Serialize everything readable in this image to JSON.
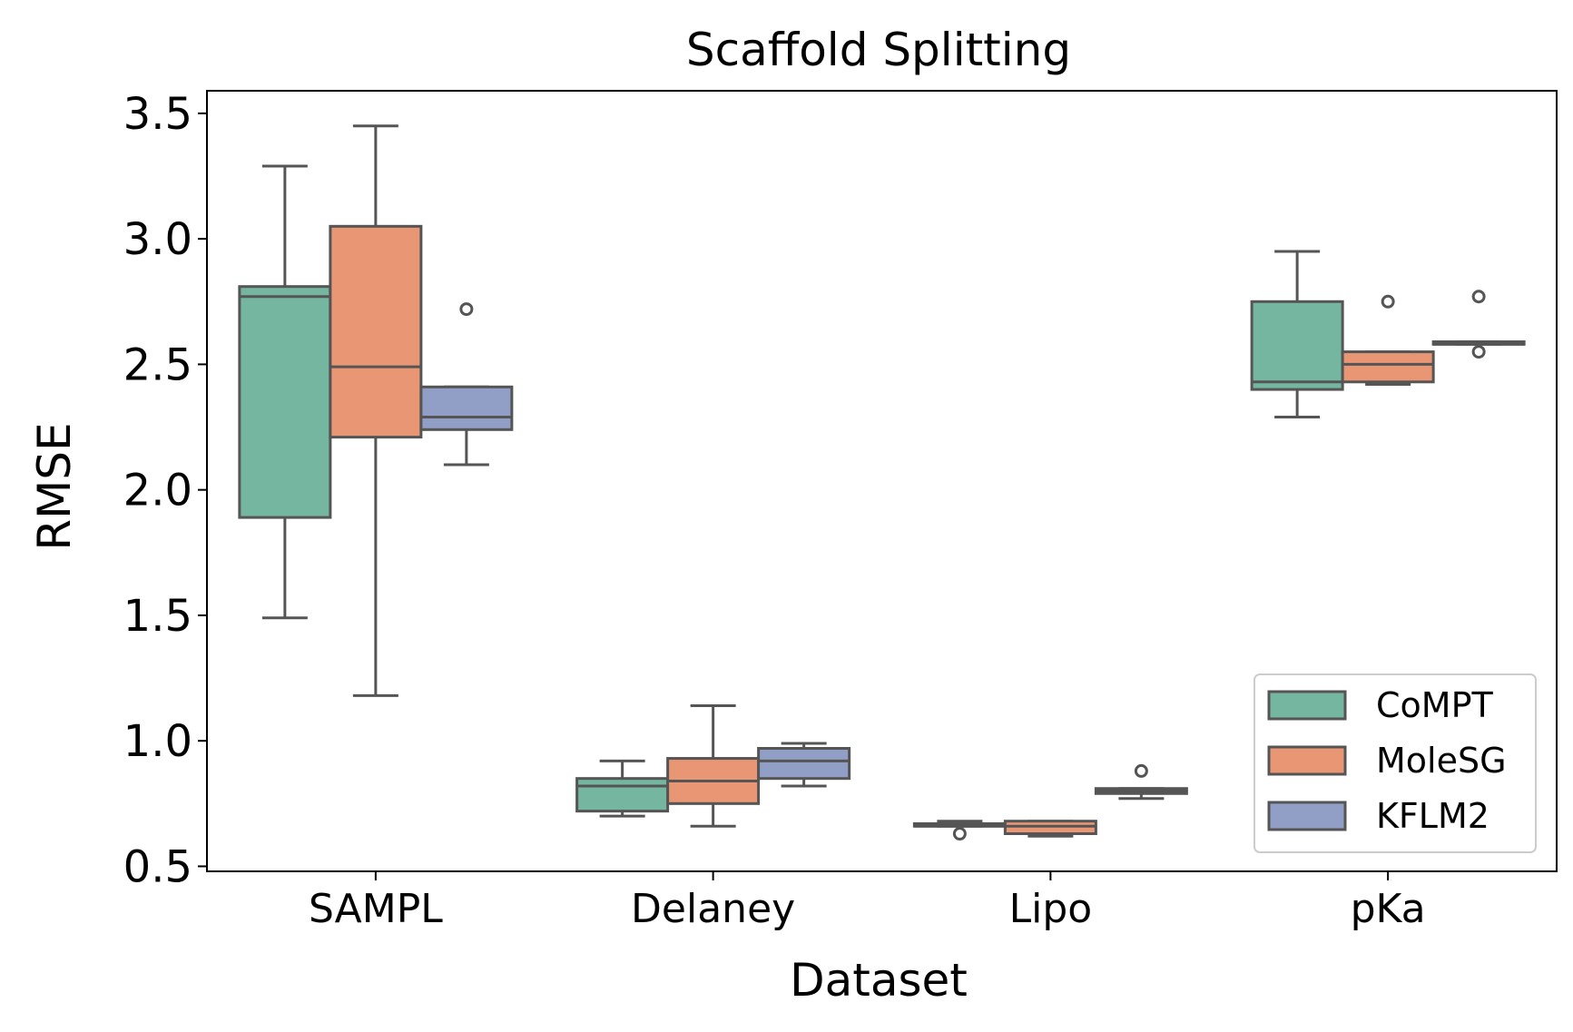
{
  "chart_data": {
    "type": "box",
    "title": "Scaffold Splitting",
    "xlabel": "Dataset",
    "ylabel": "RMSE",
    "categories": [
      "SAMPL",
      "Delaney",
      "Lipo",
      "pKa"
    ],
    "ylim": [
      0.48,
      3.59
    ],
    "yticks": [
      0.5,
      1.0,
      1.5,
      2.0,
      2.5,
      3.0,
      3.5
    ],
    "ytick_labels": [
      "0.5",
      "1.0",
      "1.5",
      "2.0",
      "2.5",
      "3.0",
      "3.5"
    ],
    "legend_position": "bottom-right",
    "grid": false,
    "series": [
      {
        "name": "CoMPT",
        "color": "#74b6a0",
        "boxes": [
          {
            "whislo": 1.49,
            "q1": 1.89,
            "med": 2.77,
            "q3": 2.81,
            "whishi": 3.29,
            "fliers": []
          },
          {
            "whislo": 0.7,
            "q1": 0.72,
            "med": 0.82,
            "q3": 0.85,
            "whishi": 0.92,
            "fliers": []
          },
          {
            "whislo": 0.66,
            "q1": 0.66,
            "med": 0.66,
            "q3": 0.67,
            "whishi": 0.68,
            "fliers": [
              0.63
            ]
          },
          {
            "whislo": 2.29,
            "q1": 2.4,
            "med": 2.43,
            "q3": 2.75,
            "whishi": 2.95,
            "fliers": []
          }
        ]
      },
      {
        "name": "MoleSG",
        "color": "#e99675",
        "boxes": [
          {
            "whislo": 1.18,
            "q1": 2.21,
            "med": 2.49,
            "q3": 3.05,
            "whishi": 3.45,
            "fliers": []
          },
          {
            "whislo": 0.66,
            "q1": 0.75,
            "med": 0.84,
            "q3": 0.93,
            "whishi": 1.14,
            "fliers": []
          },
          {
            "whislo": 0.62,
            "q1": 0.63,
            "med": 0.66,
            "q3": 0.68,
            "whishi": 0.68,
            "fliers": []
          },
          {
            "whislo": 2.42,
            "q1": 2.43,
            "med": 2.5,
            "q3": 2.55,
            "whishi": 2.55,
            "fliers": [
              2.75
            ]
          }
        ]
      },
      {
        "name": "KFLM2",
        "color": "#919fc7",
        "boxes": [
          {
            "whislo": 2.1,
            "q1": 2.24,
            "med": 2.29,
            "q3": 2.41,
            "whishi": 2.41,
            "fliers": [
              2.72
            ]
          },
          {
            "whislo": 0.82,
            "q1": 0.85,
            "med": 0.92,
            "q3": 0.97,
            "whishi": 0.99,
            "fliers": []
          },
          {
            "whislo": 0.77,
            "q1": 0.79,
            "med": 0.8,
            "q3": 0.81,
            "whishi": 0.81,
            "fliers": [
              0.88
            ]
          },
          {
            "whislo": 2.58,
            "q1": 2.58,
            "med": 2.58,
            "q3": 2.59,
            "whishi": 2.59,
            "fliers": [
              2.55,
              2.77
            ]
          }
        ]
      }
    ]
  }
}
